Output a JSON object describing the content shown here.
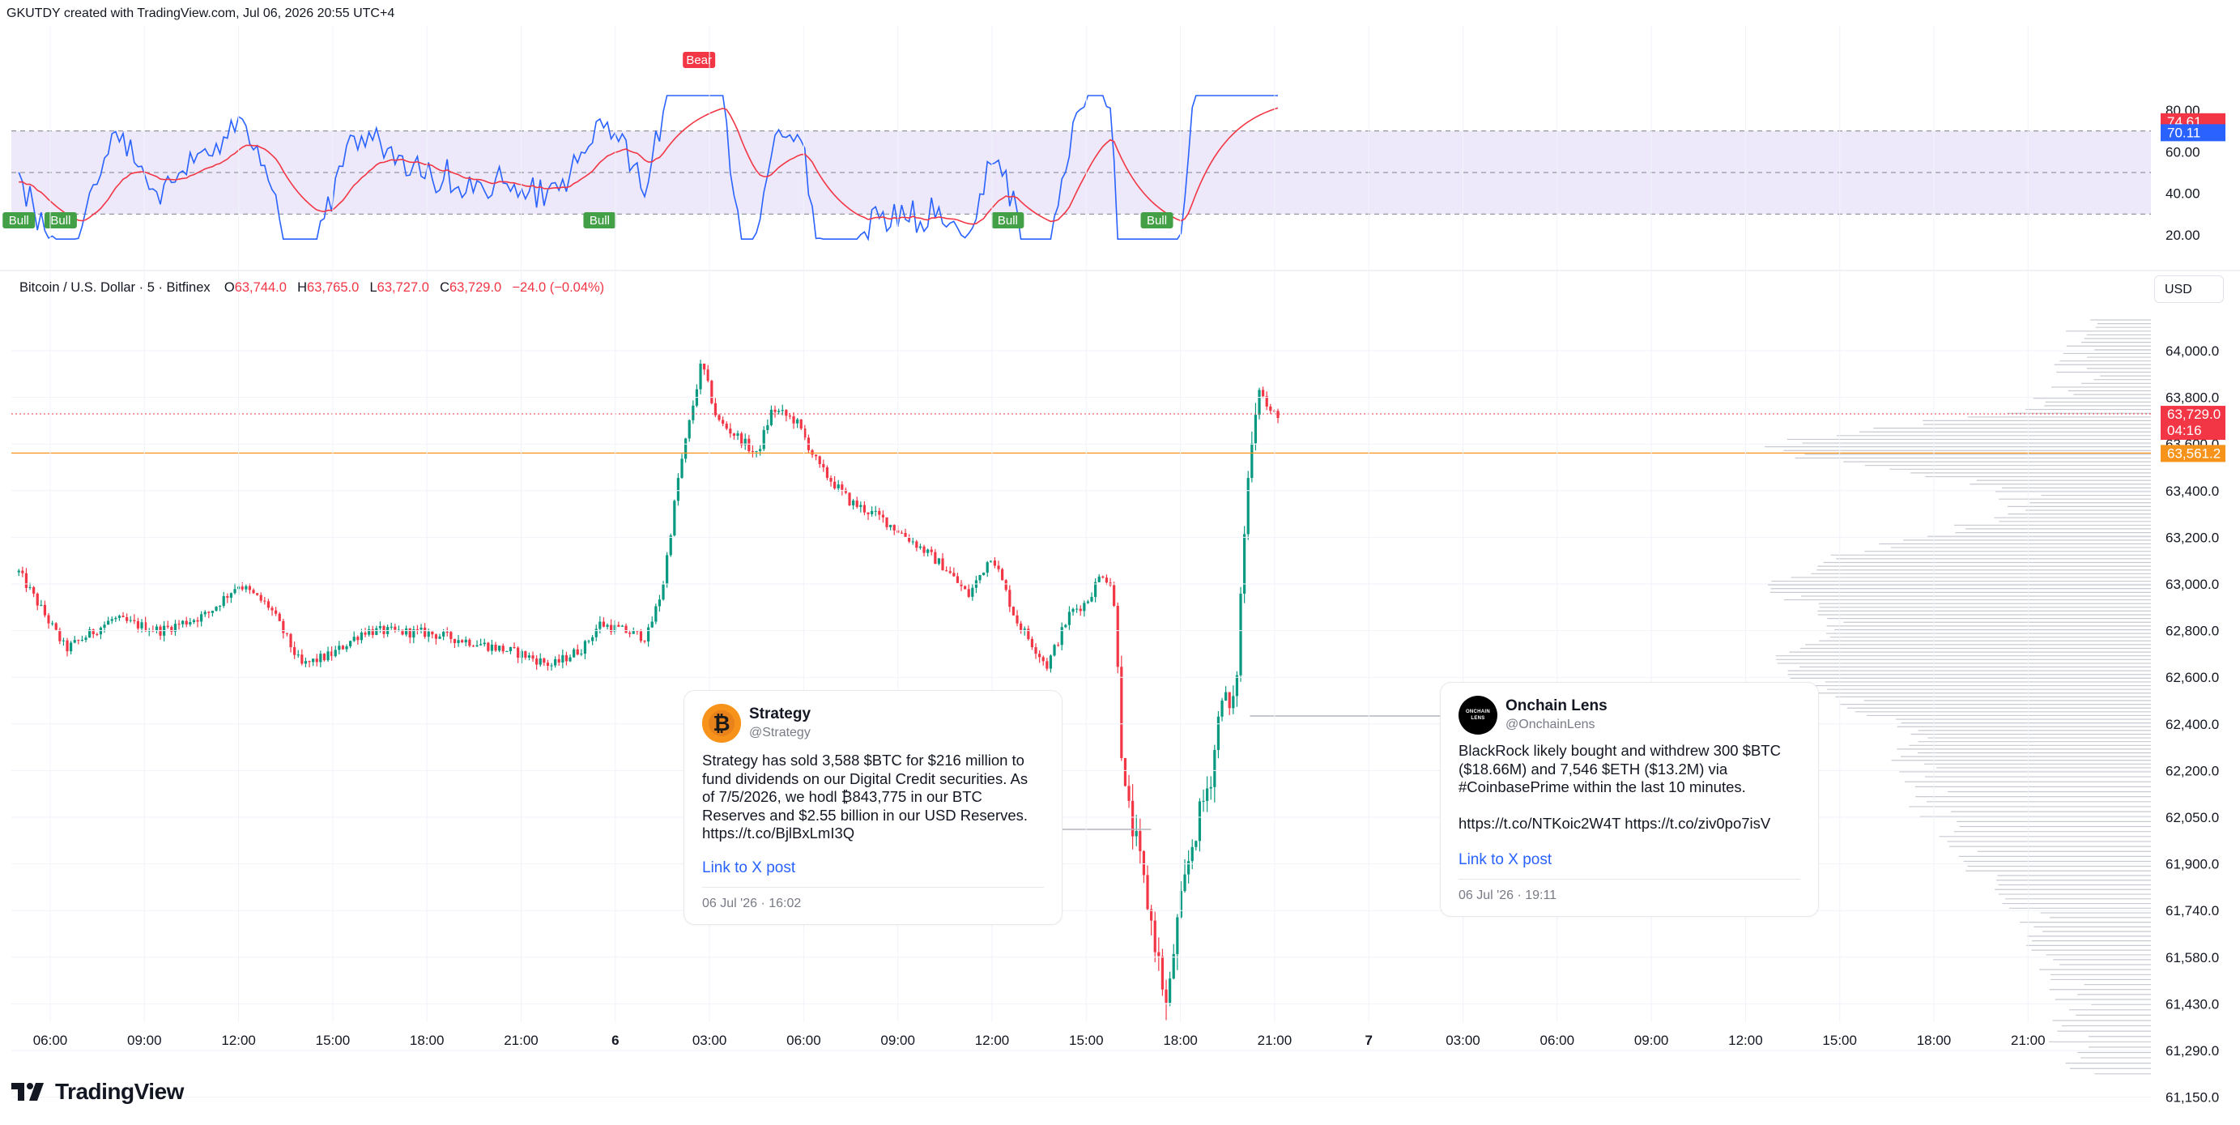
{
  "header": {
    "text": "GKUTDY created with TradingView.com, Jul 06, 2026 20:55 UTC+4"
  },
  "branding": {
    "logo_text": "TradingView"
  },
  "colors": {
    "up": "#089981",
    "down": "#f23645",
    "rsi_line": "#2962ff",
    "rsi_ma": "#f23645",
    "rsi_band": "#ede9fb",
    "price_line": "#f7931a",
    "bull": "#43a047",
    "bear": "#f23645",
    "text": "#131722"
  },
  "symbol_bar": {
    "name": "Bitcoin / U.S. Dollar · 5 · Bitfinex",
    "o_label": "O",
    "o_value": "63,744.0",
    "h_label": "H",
    "h_value": "63,765.0",
    "l_label": "L",
    "l_value": "63,727.0",
    "c_label": "C",
    "c_value": "63,729.0",
    "change": "−24.0 (−0.04%)"
  },
  "currency_button": "USD",
  "price_badges": {
    "last": "63,729.0",
    "countdown": "04:16",
    "line": "63,561.2"
  },
  "tweets": [
    {
      "name": "Strategy",
      "handle": "@Strategy",
      "avatar_icon": "bitcoin-logo-icon",
      "text": "Strategy has sold 3,588 $BTC for $216 million to\nfund dividends on our Digital Credit securities. As\nof 7/5/2026, we hodl ₿843,775 in our BTC\nReserves and $2.55 billion in our USD Reserves.\nhttps://t.co/BjlBxLmI3Q",
      "link": "Link to X post",
      "date": "06 Jul '26 · 16:02"
    },
    {
      "name": "Onchain Lens",
      "handle": "@OnchainLens",
      "avatar_icon": "onchain-lens-logo-icon",
      "avatar_text": "ONCHAIN LENS",
      "text": "BlackRock likely bought and withdrew 300 $BTC\n($18.66M) and 7,546 $ETH ($13.2M) via\n#CoinbasePrime within the last 10 minutes.\n\nhttps://t.co/NTKoic2W4T https://t.co/ziv0po7isV",
      "link": "Link to X post",
      "date": "06 Jul '26 · 19:11"
    }
  ],
  "chart_data": [
    {
      "type": "line",
      "name": "RSI panel",
      "yticks": [
        20,
        40,
        60,
        80
      ],
      "ylim": [
        13,
        87
      ],
      "band": [
        30,
        70
      ],
      "midline": 50,
      "current_values": [
        "74.61",
        "70.11"
      ],
      "divergence_labels": [
        {
          "text": "Bull",
          "kind": "bull",
          "x": "05:00"
        },
        {
          "text": "Bull",
          "kind": "bull",
          "x": "06:20"
        },
        {
          "text": "Bull",
          "kind": "bull",
          "x": "23:30"
        },
        {
          "text": "Bear",
          "kind": "bear",
          "x": "02:40"
        },
        {
          "text": "Bull",
          "kind": "bull",
          "x": "12:30"
        },
        {
          "text": "Bull",
          "kind": "bull",
          "x": "17:15"
        }
      ],
      "rsi_ranges": {
        "low": 18,
        "high": 87
      }
    },
    {
      "type": "candlestick",
      "name": "BTCUSD 5",
      "ylim": [
        61100,
        64200
      ],
      "yticks": [
        "64,000.0",
        "63,800.0",
        "63,600.0",
        "63,400.0",
        "63,200.0",
        "63,000.0",
        "62,800.0",
        "62,600.0",
        "62,400.0",
        "62,200.0",
        "62,050.0",
        "61,900.0",
        "61,740.0",
        "61,580.0",
        "61,430.0",
        "61,290.0",
        "61,150.0"
      ],
      "ytick_values": [
        64000,
        63800,
        63600,
        63400,
        63200,
        63000,
        62800,
        62600,
        62400,
        62200,
        62050,
        61900,
        61740,
        61580,
        61430,
        61290,
        61150
      ],
      "xticks": [
        "06:00",
        "09:00",
        "12:00",
        "15:00",
        "18:00",
        "21:00",
        "6",
        "03:00",
        "06:00",
        "09:00",
        "12:00",
        "15:00",
        "18:00",
        "21:00",
        "7",
        "03:00",
        "06:00",
        "09:00",
        "12:00",
        "15:00",
        "18:00",
        "21:00"
      ],
      "last_price": 63729.0,
      "price_line": 63561.2,
      "keypoints": [
        [
          "05:00",
          63050
        ],
        [
          "06:30",
          62720
        ],
        [
          "08:00",
          62850
        ],
        [
          "09:30",
          62800
        ],
        [
          "11:00",
          62870
        ],
        [
          "12:00",
          63000
        ],
        [
          "13:00",
          62900
        ],
        [
          "14:00",
          62650
        ],
        [
          "15:00",
          62700
        ],
        [
          "16:00",
          62800
        ],
        [
          "18:00",
          62790
        ],
        [
          "19:30",
          62750
        ],
        [
          "21:00",
          62700
        ],
        [
          "22:00",
          62650
        ],
        [
          "23:00",
          62730
        ],
        [
          "23:30",
          62830
        ],
        [
          "01:00",
          62770
        ],
        [
          "01:30",
          62980
        ],
        [
          "02:00",
          63450
        ],
        [
          "02:45",
          63950
        ],
        [
          "03:15",
          63700
        ],
        [
          "04:00",
          63620
        ],
        [
          "04:30",
          63550
        ],
        [
          "05:00",
          63750
        ],
        [
          "05:45",
          63700
        ],
        [
          "06:30",
          63500
        ],
        [
          "07:30",
          63350
        ],
        [
          "08:30",
          63280
        ],
        [
          "09:30",
          63180
        ],
        [
          "10:30",
          63070
        ],
        [
          "11:15",
          62950
        ],
        [
          "12:00",
          63130
        ],
        [
          "12:45",
          62850
        ],
        [
          "13:45",
          62650
        ],
        [
          "14:30",
          62880
        ],
        [
          "15:00",
          62920
        ],
        [
          "15:30",
          63050
        ],
        [
          "15:50",
          62990
        ],
        [
          "16:00",
          62700
        ],
        [
          "16:10",
          62150
        ],
        [
          "16:40",
          61930
        ],
        [
          "17:20",
          61550
        ],
        [
          "17:35",
          61400
        ],
        [
          "17:50",
          61650
        ],
        [
          "18:20",
          61950
        ],
        [
          "19:00",
          62200
        ],
        [
          "19:20",
          62550
        ],
        [
          "19:35",
          62450
        ],
        [
          "19:45",
          62500
        ],
        [
          "20:00",
          63150
        ],
        [
          "20:15",
          63620
        ],
        [
          "20:30",
          63850
        ],
        [
          "20:50",
          63730
        ],
        [
          "21:10",
          63729
        ]
      ],
      "volume_profile": "horizontal histogram on right side",
      "annotations": [
        {
          "tweet": "Strategy",
          "x": "16:02"
        },
        {
          "tweet": "Onchain Lens",
          "x": "19:11"
        }
      ]
    }
  ]
}
